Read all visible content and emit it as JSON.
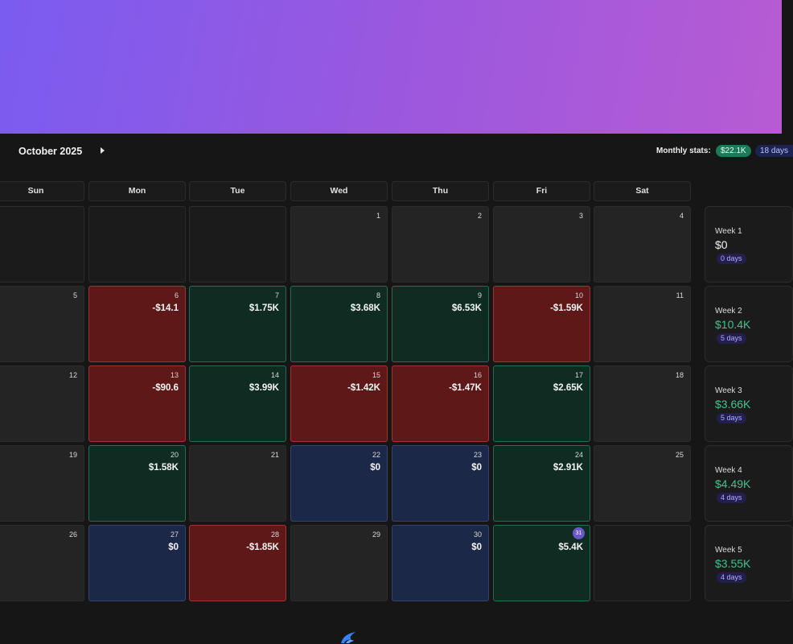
{
  "header": {
    "month_label": "October 2025",
    "stats_label": "Monthly stats:",
    "stats_pnl": "$22.1K",
    "stats_days": "18 days"
  },
  "weekdays": [
    "Sun",
    "Mon",
    "Tue",
    "Wed",
    "Thu",
    "Fri",
    "Sat"
  ],
  "weeks": [
    [
      {
        "day": "",
        "pnl": "",
        "state": "empty"
      },
      {
        "day": "",
        "pnl": "",
        "state": "empty"
      },
      {
        "day": "",
        "pnl": "",
        "state": "empty"
      },
      {
        "day": "1",
        "pnl": "",
        "state": "none"
      },
      {
        "day": "2",
        "pnl": "",
        "state": "none"
      },
      {
        "day": "3",
        "pnl": "",
        "state": "none"
      },
      {
        "day": "4",
        "pnl": "",
        "state": "none"
      }
    ],
    [
      {
        "day": "5",
        "pnl": "",
        "state": "none"
      },
      {
        "day": "6",
        "pnl": "-$14.1",
        "state": "neg"
      },
      {
        "day": "7",
        "pnl": "$1.75K",
        "state": "pos"
      },
      {
        "day": "8",
        "pnl": "$3.68K",
        "state": "pos"
      },
      {
        "day": "9",
        "pnl": "$6.53K",
        "state": "pos"
      },
      {
        "day": "10",
        "pnl": "-$1.59K",
        "state": "neg"
      },
      {
        "day": "11",
        "pnl": "",
        "state": "none"
      }
    ],
    [
      {
        "day": "12",
        "pnl": "",
        "state": "none"
      },
      {
        "day": "13",
        "pnl": "-$90.6",
        "state": "neg"
      },
      {
        "day": "14",
        "pnl": "$3.99K",
        "state": "pos"
      },
      {
        "day": "15",
        "pnl": "-$1.42K",
        "state": "neg"
      },
      {
        "day": "16",
        "pnl": "-$1.47K",
        "state": "neg"
      },
      {
        "day": "17",
        "pnl": "$2.65K",
        "state": "pos"
      },
      {
        "day": "18",
        "pnl": "",
        "state": "none"
      }
    ],
    [
      {
        "day": "19",
        "pnl": "",
        "state": "none"
      },
      {
        "day": "20",
        "pnl": "$1.58K",
        "state": "pos"
      },
      {
        "day": "21",
        "pnl": "",
        "state": "none"
      },
      {
        "day": "22",
        "pnl": "$0",
        "state": "zero"
      },
      {
        "day": "23",
        "pnl": "$0",
        "state": "zero"
      },
      {
        "day": "24",
        "pnl": "$2.91K",
        "state": "pos"
      },
      {
        "day": "25",
        "pnl": "",
        "state": "none"
      }
    ],
    [
      {
        "day": "26",
        "pnl": "",
        "state": "none"
      },
      {
        "day": "27",
        "pnl": "$0",
        "state": "zero"
      },
      {
        "day": "28",
        "pnl": "-$1.85K",
        "state": "neg"
      },
      {
        "day": "29",
        "pnl": "",
        "state": "none"
      },
      {
        "day": "30",
        "pnl": "$0",
        "state": "zero"
      },
      {
        "day": "31",
        "pnl": "$5.4K",
        "state": "today"
      },
      {
        "day": "",
        "pnl": "",
        "state": "blank-dark"
      }
    ]
  ],
  "week_summaries": [
    {
      "label": "Week 1",
      "value": "$0",
      "days": "0 days",
      "positive": false
    },
    {
      "label": "Week 2",
      "value": "$10.4K",
      "days": "5 days",
      "positive": true
    },
    {
      "label": "Week 3",
      "value": "$3.66K",
      "days": "5 days",
      "positive": true
    },
    {
      "label": "Week 4",
      "value": "$4.49K",
      "days": "4 days",
      "positive": true
    },
    {
      "label": "Week 5",
      "value": "$3.55K",
      "days": "4 days",
      "positive": true
    }
  ],
  "colors": {
    "positive": "#0f2c22",
    "negative": "#5e1818",
    "zero": "#1c2847",
    "accent_green": "#3ec48d",
    "banner_start": "#7a5cf0",
    "banner_end": "#b75bd3"
  },
  "icons": {
    "next_month": "chevron-right-icon",
    "footer": "logo-icon"
  }
}
